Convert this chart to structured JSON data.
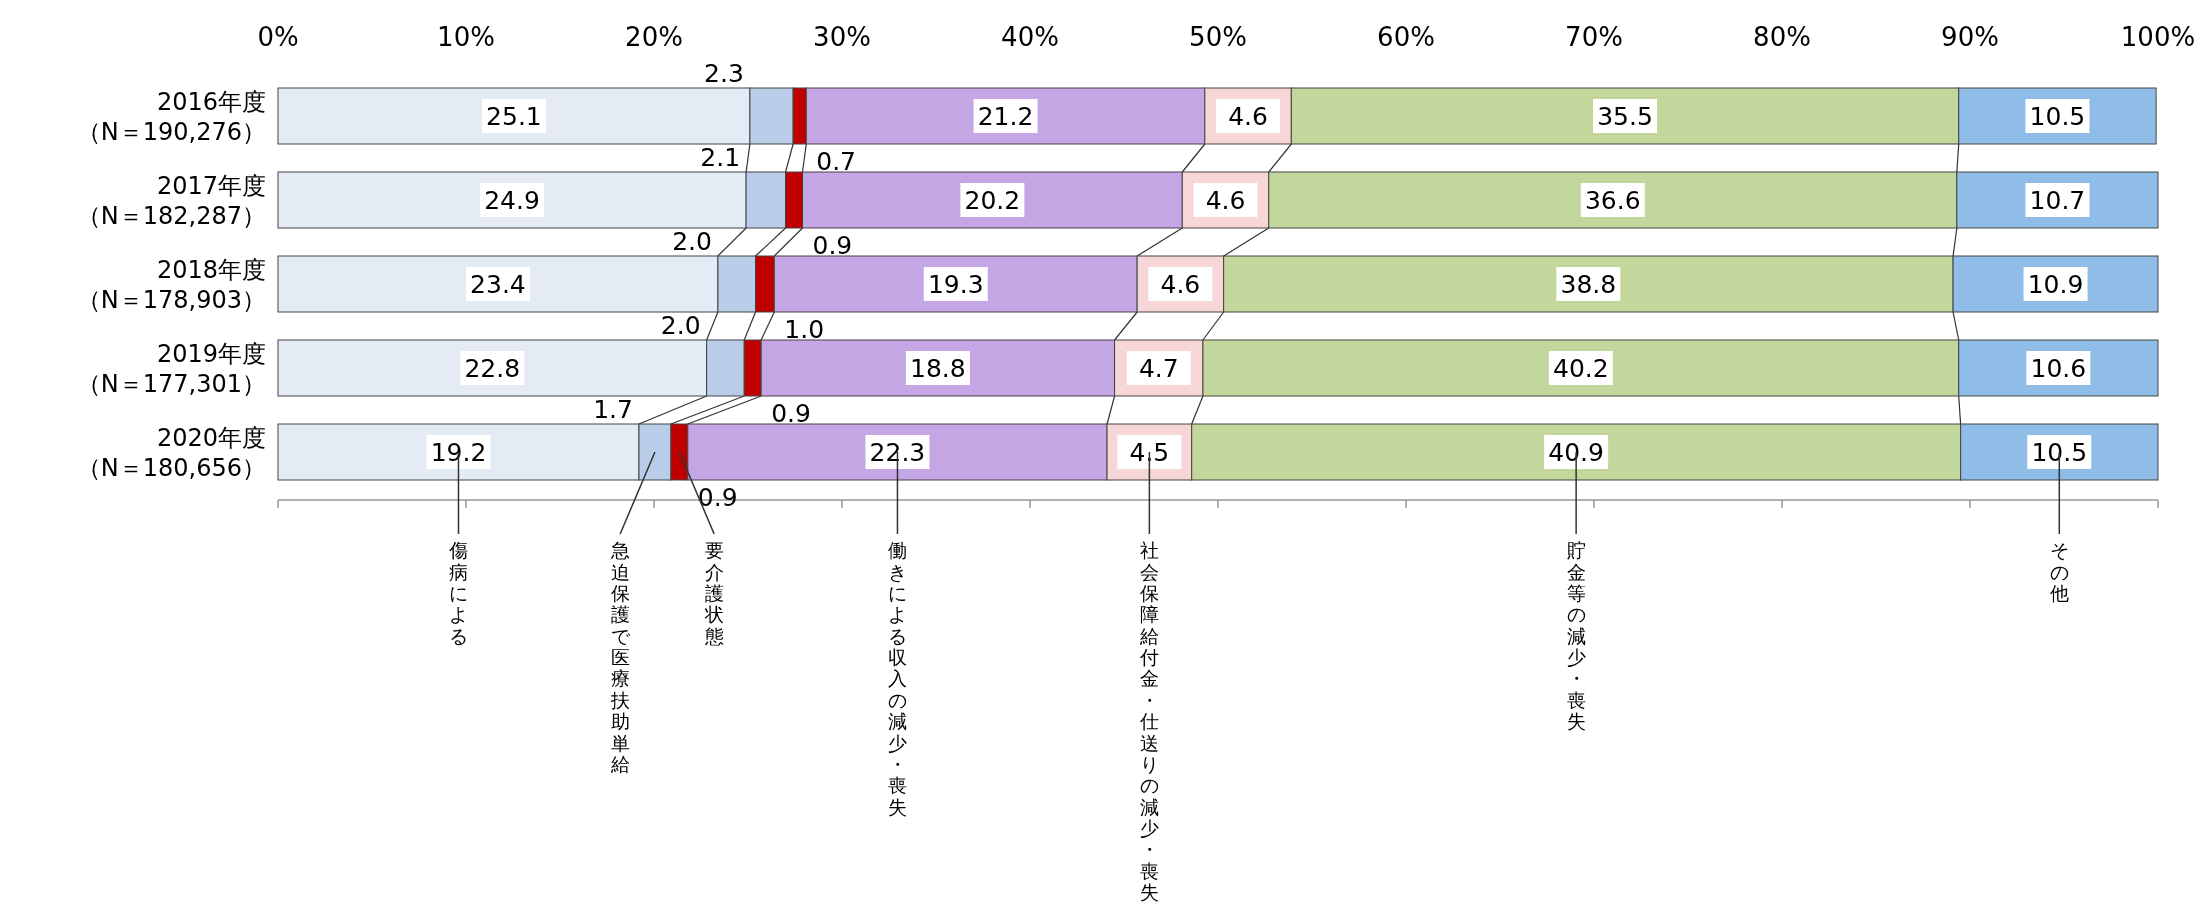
{
  "chart_data": {
    "type": "bar",
    "orientation": "horizontal",
    "stacked": true,
    "categories": [
      "2016年度（N＝190,276）",
      "2017年度（N＝182,287）",
      "2018年度（N＝178,903）",
      "2019年度（N＝177,301）",
      "2020年度（N＝180,656）"
    ],
    "xlim": [
      0,
      100
    ],
    "xticks": [
      {
        "value": 0,
        "label": "0%"
      },
      {
        "value": 10,
        "label": "10%"
      },
      {
        "value": 20,
        "label": "20%"
      },
      {
        "value": 30,
        "label": "30%"
      },
      {
        "value": 40,
        "label": "40%"
      },
      {
        "value": 50,
        "label": "50%"
      },
      {
        "value": 60,
        "label": "60%"
      },
      {
        "value": 70,
        "label": "70%"
      },
      {
        "value": 80,
        "label": "80%"
      },
      {
        "value": 90,
        "label": "90%"
      },
      {
        "value": 100,
        "label": "100%"
      }
    ],
    "series": [
      {
        "name": "傷病による",
        "color": "#e4ebf5",
        "values": [
          25.1,
          24.9,
          23.4,
          22.8,
          19.2
        ],
        "value_labels": [
          "25.1",
          "24.9",
          "23.4",
          "22.8",
          "19.2"
        ]
      },
      {
        "name": "急迫保護で医療扶助単給",
        "color": "#b9cde8",
        "values": [
          2.3,
          2.1,
          2.0,
          2.0,
          1.7
        ],
        "value_labels": [
          "2.3",
          "2.1",
          "2.0",
          "2.0",
          "1.7"
        ]
      },
      {
        "name": "要介護状態",
        "color": "#c00000",
        "values": [
          0.7,
          0.9,
          1.0,
          0.9,
          0.9
        ],
        "value_labels": [
          "0.7",
          "0.9",
          "1.0",
          "0.9",
          "0.9"
        ]
      },
      {
        "name": "働きによる収入の減少・喪失",
        "color": "#c4a6e4",
        "values": [
          21.2,
          20.2,
          19.3,
          18.8,
          22.3
        ],
        "value_labels": [
          "21.2",
          "20.2",
          "19.3",
          "18.8",
          "22.3"
        ]
      },
      {
        "name": "社会保障給付金・仕送りの減少・喪失",
        "color": "#f6d6d6",
        "values": [
          4.6,
          4.6,
          4.6,
          4.7,
          4.5
        ],
        "value_labels": [
          "4.6",
          "4.6",
          "4.6",
          "4.7",
          "4.5"
        ]
      },
      {
        "name": "貯金等の減少・喪失",
        "color": "#c3d69b",
        "values": [
          35.5,
          36.6,
          38.8,
          40.2,
          40.9
        ],
        "value_labels": [
          "35.5",
          "36.6",
          "38.8",
          "40.2",
          "40.9"
        ]
      },
      {
        "name": "その他",
        "color": "#8fbde8",
        "values": [
          10.5,
          10.7,
          10.9,
          10.6,
          10.5
        ],
        "value_labels": [
          "10.5",
          "10.7",
          "10.9",
          "10.6",
          "10.5"
        ]
      }
    ]
  }
}
